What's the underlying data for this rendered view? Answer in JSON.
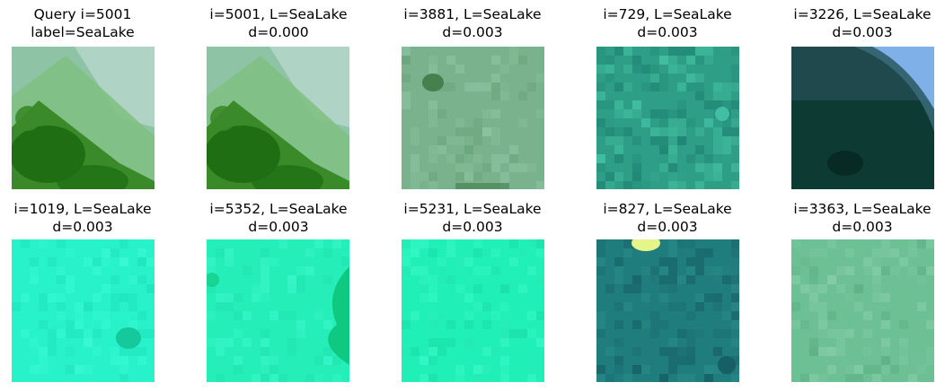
{
  "panels": [
    {
      "line1": "Query i=5001",
      "line2": "label=SeaLake",
      "scene": "query-shore",
      "colors": {
        "base": "#8fc3a6",
        "a": "#b7d7cc",
        "b": "#3b8a2a",
        "c": "#1f6e14",
        "d": "#7fbf80"
      }
    },
    {
      "line1": "i=5001, L=SeaLake",
      "line2": "d=0.000",
      "scene": "query-shore",
      "colors": {
        "base": "#8fc3a6",
        "a": "#b7d7cc",
        "b": "#3b8a2a",
        "c": "#1f6e14",
        "d": "#7fbf80"
      }
    },
    {
      "line1": "i=3881, L=SeaLake",
      "line2": "d=0.003",
      "scene": "flat-spot",
      "colors": {
        "base": "#79b28c",
        "a": "#86bd9b",
        "b": "#3f7a48",
        "c": "#6aa57c",
        "d": "#8fc4a4"
      }
    },
    {
      "line1": "i=729, L=SeaLake",
      "line2": "d=0.003",
      "scene": "speckle",
      "colors": {
        "base": "#2e9f86",
        "a": "#3fb69a",
        "b": "#1e7d70",
        "c": "#45c2a6",
        "d": "#27907c"
      }
    },
    {
      "line1": "i=3226, L=SeaLake",
      "line2": "d=0.003",
      "scene": "dark-corner",
      "colors": {
        "base": "#0d3b34",
        "a": "#7fb0e8",
        "b": "#244e52",
        "c": "#082a25",
        "d": "#3c6e7d"
      }
    },
    {
      "line1": "i=1019, L=SeaLake",
      "line2": "d=0.003",
      "scene": "cyan-spot",
      "colors": {
        "base": "#27f2c9",
        "a": "#35f7d2",
        "b": "#14c99b",
        "c": "#21e4bd",
        "d": "#3dfad6"
      }
    },
    {
      "line1": "i=5352, L=SeaLake",
      "line2": "d=0.003",
      "scene": "cyan-edge",
      "colors": {
        "base": "#26eeb9",
        "a": "#33f5c6",
        "b": "#0fc981",
        "c": "#1fe3ae",
        "d": "#3cf7cd"
      }
    },
    {
      "line1": "i=5231, L=SeaLake",
      "line2": "d=0.003",
      "scene": "flat",
      "colors": {
        "base": "#20efb7",
        "a": "#2ff5c2",
        "b": "#1adfa7",
        "c": "#26e9b3",
        "d": "#3af7c8"
      }
    },
    {
      "line1": "i=827, L=SeaLake",
      "line2": "d=0.003",
      "scene": "teal-bright",
      "colors": {
        "base": "#1f7d7d",
        "a": "#e6f58a",
        "b": "#165f64",
        "c": "#2a8c86",
        "d": "#1c6f72"
      }
    },
    {
      "line1": "i=3363, L=SeaLake",
      "line2": "d=0.003",
      "scene": "soft",
      "colors": {
        "base": "#6dbf94",
        "a": "#7fcaa3",
        "b": "#5db184",
        "c": "#76c69c",
        "d": "#88cfaa"
      }
    }
  ]
}
